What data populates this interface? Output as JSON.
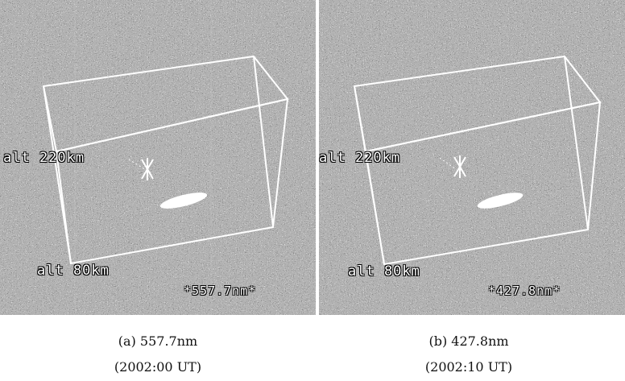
{
  "panels": [
    {
      "id": "a",
      "alt_top": "alt 220km",
      "alt_bottom": "alt 80km",
      "wavelength_tag": "*557.7nm*",
      "caption_line1": "(a) 557.7nm",
      "caption_line2": "(2002:00 UT)"
    },
    {
      "id": "b",
      "alt_top": "alt 220km",
      "alt_bottom": "alt 80km",
      "wavelength_tag": "*427.8nm*",
      "caption_line1": "(b) 427.8nm",
      "caption_line2": "(2002:10 UT)"
    }
  ],
  "colors": {
    "noise_background": "#5a5a5a",
    "box_lines": "#ffffff",
    "caption_text": "#111111"
  }
}
